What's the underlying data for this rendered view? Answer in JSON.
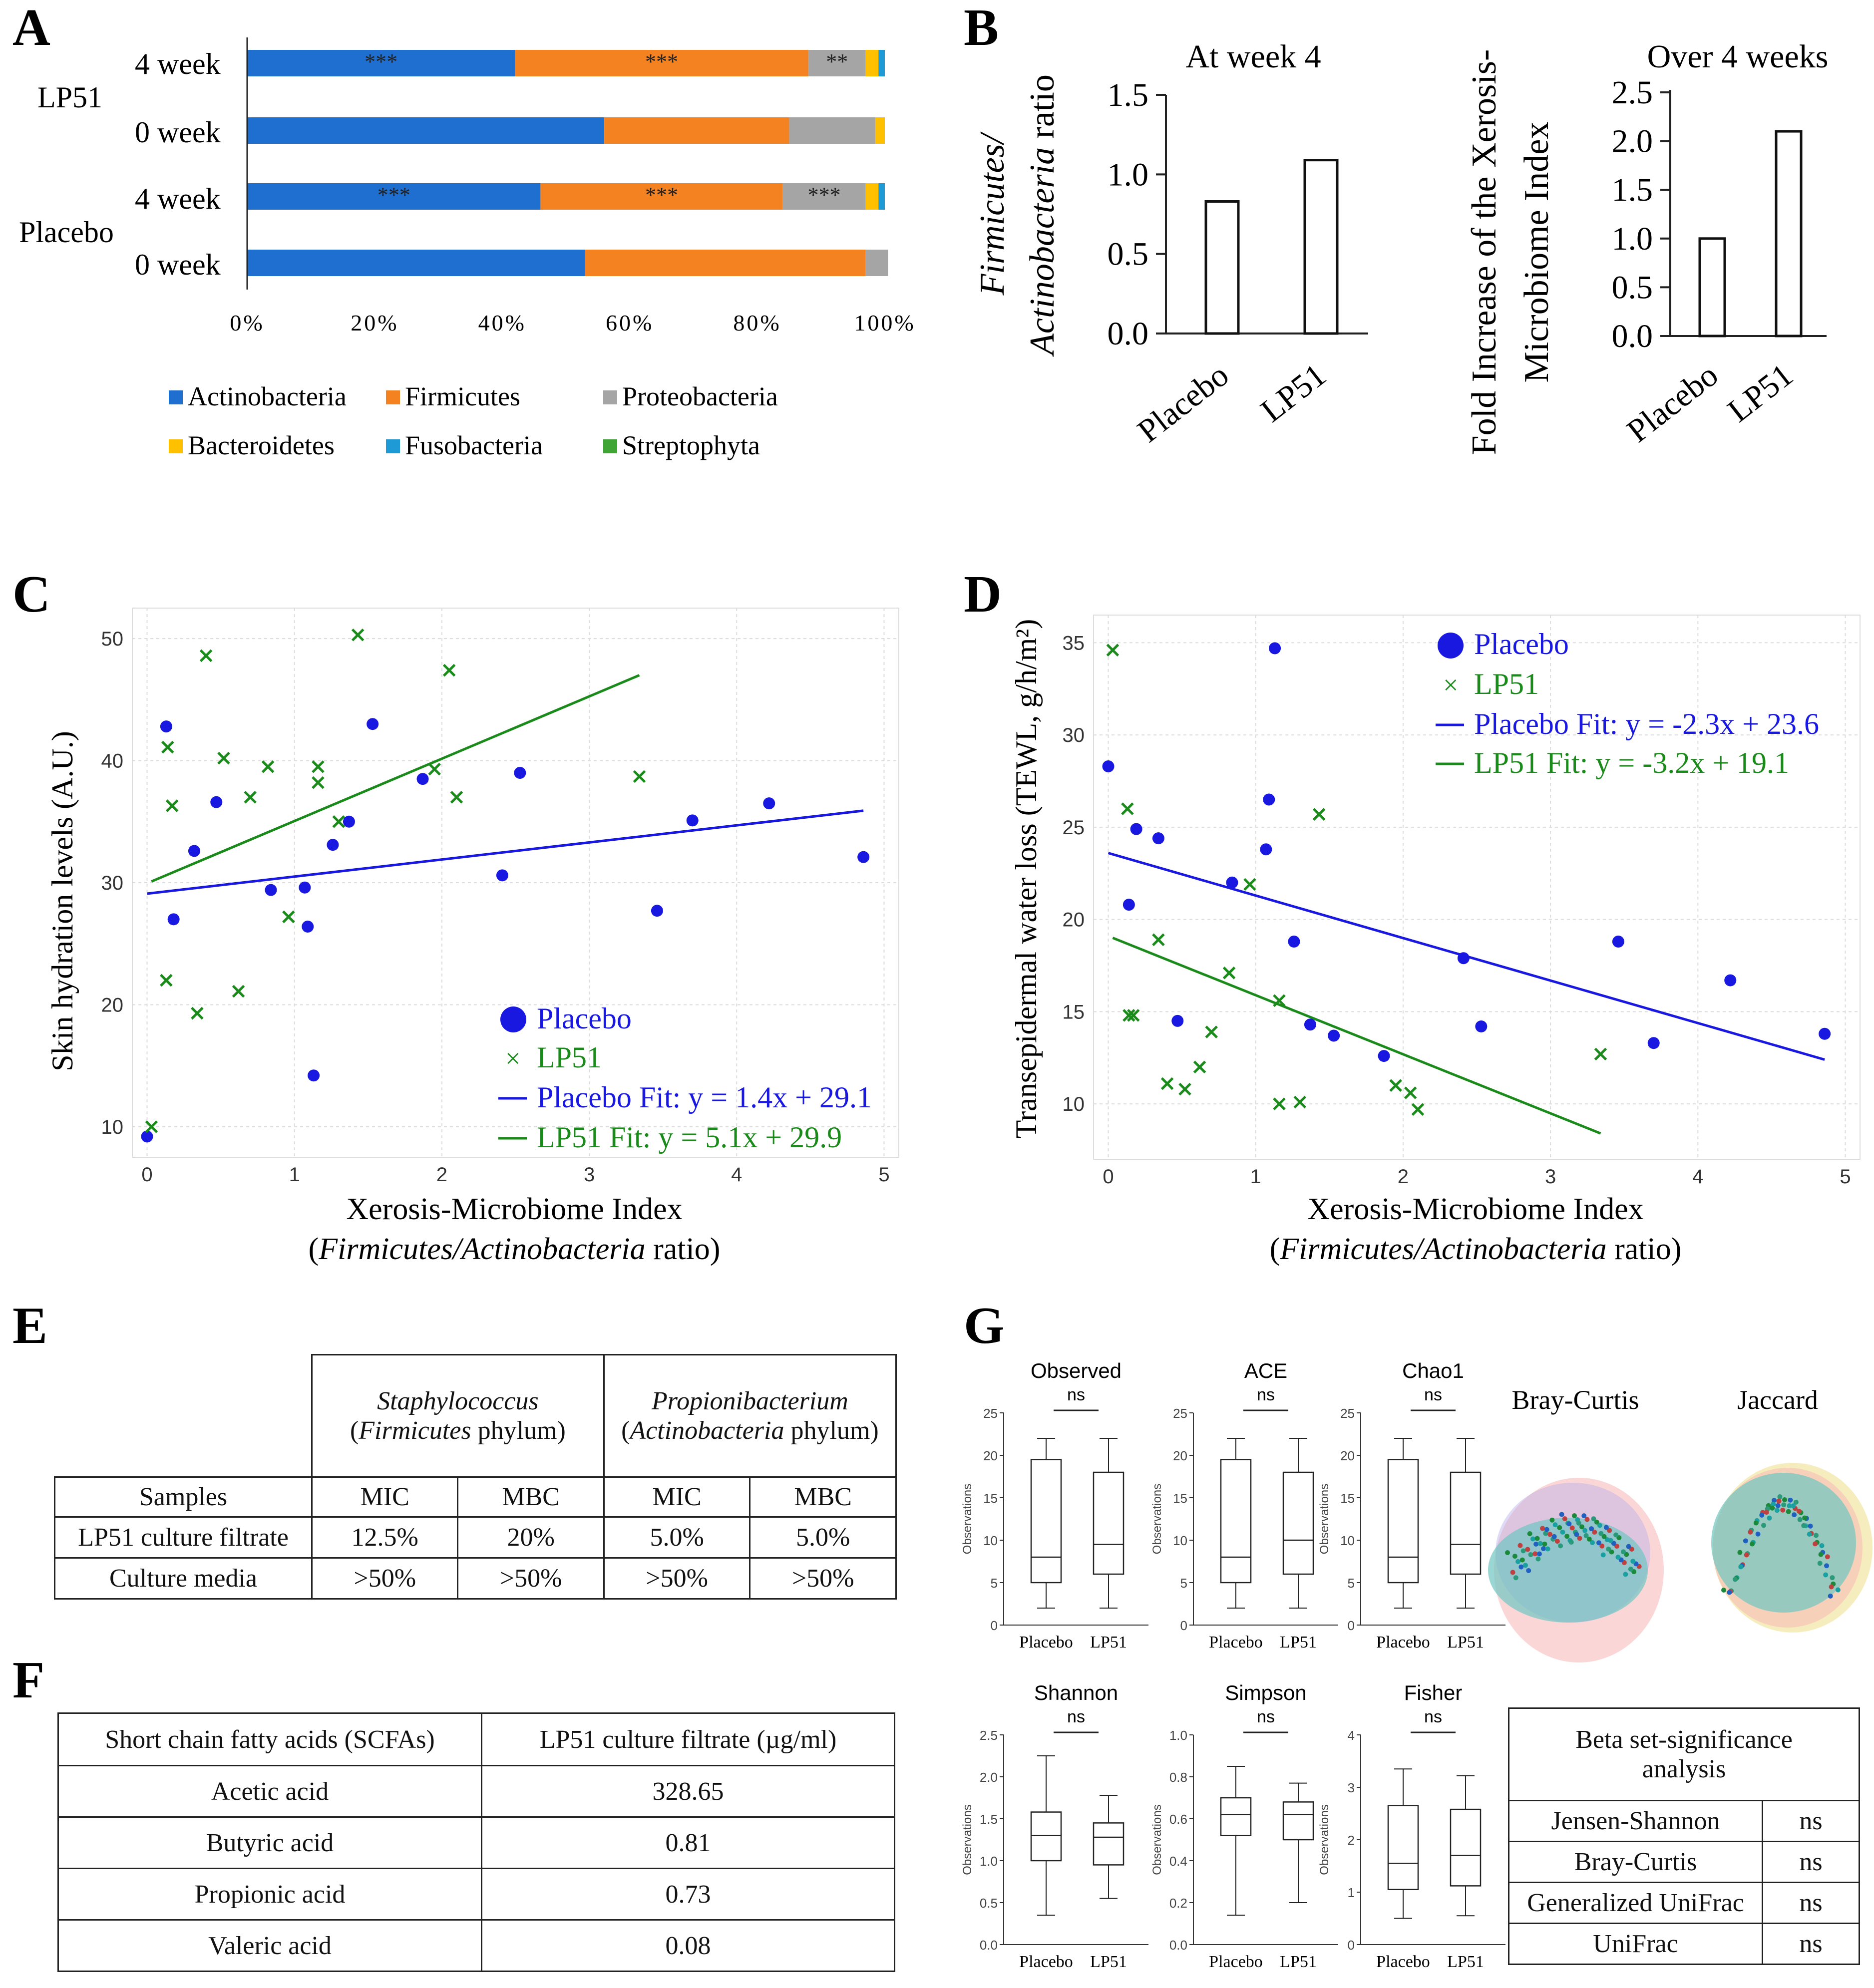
{
  "panels": {
    "A": "A",
    "B": "B",
    "C": "C",
    "D": "D",
    "E": "E",
    "F": "F",
    "G": "G"
  },
  "colors": {
    "actinobacteria": "#1f6fd1",
    "firmicutes": "#f58220",
    "proteobacteria": "#a5a5a5",
    "bacteroidetes": "#ffc000",
    "fusobacteria": "#1e9bd7",
    "streptophyta": "#3fa535",
    "placebo": "#1818e0",
    "lp51": "#1a8a1a"
  },
  "chart_data": [
    {
      "id": "A",
      "type": "bar",
      "orientation": "horizontal",
      "stacked": true,
      "groups": [
        "LP51",
        "Placebo"
      ],
      "categories": [
        "4 week",
        "0 week",
        "4 week",
        "0 week"
      ],
      "category_group": [
        "LP51",
        "LP51",
        "Placebo",
        "Placebo"
      ],
      "series": [
        {
          "name": "Actinobacteria",
          "values": [
            42,
            56,
            46,
            53
          ]
        },
        {
          "name": "Firmicutes",
          "values": [
            46,
            29,
            38,
            44
          ]
        },
        {
          "name": "Proteobacteria",
          "values": [
            9,
            13.5,
            13,
            3.5
          ]
        },
        {
          "name": "Bacteroidetes",
          "values": [
            2,
            1.5,
            2,
            0
          ]
        },
        {
          "name": "Fusobacteria",
          "values": [
            1,
            0,
            1,
            0
          ]
        },
        {
          "name": "Streptophyta",
          "values": [
            0,
            0,
            0,
            0
          ]
        }
      ],
      "significance": [
        {
          "row": 0,
          "series": "Actinobacteria",
          "label": "***"
        },
        {
          "row": 0,
          "series": "Firmicutes",
          "label": "***"
        },
        {
          "row": 0,
          "series": "Proteobacteria",
          "label": "**"
        },
        {
          "row": 2,
          "series": "Actinobacteria",
          "label": "***"
        },
        {
          "row": 2,
          "series": "Firmicutes",
          "label": "***"
        },
        {
          "row": 2,
          "series": "Proteobacteria",
          "label": "***"
        }
      ],
      "xticks": [
        "0%",
        "20%",
        "40%",
        "60%",
        "80%",
        "100%"
      ],
      "xlim": [
        0,
        100
      ]
    },
    {
      "id": "B1",
      "type": "bar",
      "title": "At week 4",
      "categories": [
        "Placebo",
        "LP51"
      ],
      "values": [
        0.83,
        1.09
      ],
      "ylabel_italic_1": "Firmicutes/",
      "ylabel_italic_2": "Actinobacteria",
      "ylabel_suffix": " ratio",
      "yticks": [
        "0.0",
        "0.5",
        "1.0",
        "1.5"
      ],
      "ylim": [
        0,
        1.5
      ]
    },
    {
      "id": "B2",
      "type": "bar",
      "title": "Over 4 weeks",
      "categories": [
        "Placebo",
        "LP51"
      ],
      "values": [
        1.0,
        2.1
      ],
      "ylabel_1": "Fold Increase of the Xerosis-",
      "ylabel_2": "Microbiome Index",
      "yticks": [
        "0.0",
        "0.5",
        "1.0",
        "1.5",
        "2.0",
        "2.5"
      ],
      "ylim": [
        0,
        2.5
      ]
    },
    {
      "id": "C",
      "type": "scatter",
      "ylabel": "Skin hydration levels (A.U.)",
      "xlabel_1": "Xerosis-Microbiome Index",
      "xlabel_2_open": "(",
      "xlabel_2_italic": "Firmicutes/Actinobacteria",
      "xlabel_2_close": " ratio)",
      "xlim": [
        -0.1,
        5.1
      ],
      "ylim": [
        7.5,
        52.5
      ],
      "xticks": [
        "0",
        "1",
        "2",
        "3",
        "4",
        "5"
      ],
      "yticks": [
        "10",
        "20",
        "30",
        "40",
        "50"
      ],
      "placebo": [
        [
          0,
          9.2
        ],
        [
          0.13,
          42.8
        ],
        [
          0.18,
          27
        ],
        [
          0.32,
          32.6
        ],
        [
          0.47,
          36.6
        ],
        [
          0.84,
          29.4
        ],
        [
          1.07,
          29.6
        ],
        [
          1.09,
          26.4
        ],
        [
          1.13,
          14.2
        ],
        [
          1.26,
          33.1
        ],
        [
          1.37,
          35
        ],
        [
          1.53,
          43
        ],
        [
          1.87,
          38.5
        ],
        [
          2.41,
          30.6
        ],
        [
          2.53,
          39
        ],
        [
          3.46,
          27.7
        ],
        [
          3.7,
          35.1
        ],
        [
          4.22,
          36.5
        ],
        [
          4.86,
          32.1
        ]
      ],
      "lp51": [
        [
          0.03,
          10
        ],
        [
          0.13,
          22
        ],
        [
          0.14,
          41.1
        ],
        [
          0.17,
          36.3
        ],
        [
          0.34,
          19.3
        ],
        [
          0.4,
          48.6
        ],
        [
          0.52,
          40.2
        ],
        [
          0.62,
          21.1
        ],
        [
          0.7,
          37
        ],
        [
          0.82,
          39.5
        ],
        [
          0.96,
          27.2
        ],
        [
          1.16,
          39.5
        ],
        [
          1.16,
          38.2
        ],
        [
          1.3,
          35
        ],
        [
          1.43,
          50.3
        ],
        [
          1.95,
          39.3
        ],
        [
          2.05,
          47.4
        ],
        [
          2.1,
          37
        ],
        [
          3.34,
          38.7
        ]
      ],
      "placebo_fit": {
        "x": [
          0,
          4.86
        ],
        "y": [
          29.1,
          35.9
        ]
      },
      "lp51_fit": {
        "x": [
          0.03,
          3.34
        ],
        "y": [
          30.1,
          47.0
        ]
      },
      "legend": [
        "Placebo",
        "LP51",
        "Placebo Fit: y = 1.4x + 29.1",
        "LP51 Fit: y = 5.1x + 29.9"
      ]
    },
    {
      "id": "D",
      "type": "scatter",
      "ylabel": "Transepidermal water loss (TEWL, g/h/m²)",
      "xlabel_1": "Xerosis-Microbiome Index",
      "xlabel_2_open": "(",
      "xlabel_2_italic": "Firmicutes/Actinobacteria",
      "xlabel_2_close": " ratio)",
      "xlim": [
        -0.1,
        5.1
      ],
      "ylim": [
        7,
        36.5
      ],
      "xticks": [
        "0",
        "1",
        "2",
        "3",
        "4",
        "5"
      ],
      "yticks": [
        "10",
        "15",
        "20",
        "25",
        "30",
        "35"
      ],
      "placebo": [
        [
          0,
          28.3
        ],
        [
          0.14,
          20.8
        ],
        [
          0.19,
          24.9
        ],
        [
          0.34,
          24.4
        ],
        [
          0.47,
          14.5
        ],
        [
          0.84,
          22
        ],
        [
          1.07,
          23.8
        ],
        [
          1.09,
          26.5
        ],
        [
          1.13,
          34.7
        ],
        [
          1.26,
          18.8
        ],
        [
          1.37,
          14.3
        ],
        [
          1.53,
          13.7
        ],
        [
          1.87,
          12.6
        ],
        [
          2.41,
          17.9
        ],
        [
          2.53,
          14.2
        ],
        [
          3.46,
          18.8
        ],
        [
          3.7,
          13.3
        ],
        [
          4.22,
          16.7
        ],
        [
          4.86,
          13.8
        ]
      ],
      "lp51": [
        [
          0.03,
          34.6
        ],
        [
          0.13,
          26
        ],
        [
          0.14,
          14.8
        ],
        [
          0.17,
          14.8
        ],
        [
          0.34,
          18.9
        ],
        [
          0.4,
          11.1
        ],
        [
          0.52,
          10.8
        ],
        [
          0.62,
          12
        ],
        [
          0.7,
          13.9
        ],
        [
          0.82,
          17.1
        ],
        [
          0.96,
          21.9
        ],
        [
          1.16,
          15.6
        ],
        [
          1.16,
          10
        ],
        [
          1.3,
          10.1
        ],
        [
          1.43,
          25.7
        ],
        [
          1.95,
          11
        ],
        [
          2.05,
          10.6
        ],
        [
          2.1,
          9.7
        ],
        [
          3.34,
          12.7
        ]
      ],
      "placebo_fit": {
        "x": [
          0,
          4.86
        ],
        "y": [
          23.6,
          12.4
        ]
      },
      "lp51_fit": {
        "x": [
          0.03,
          3.34
        ],
        "y": [
          19.0,
          8.4
        ]
      },
      "legend": [
        "Placebo",
        "LP51",
        "Placebo Fit: y = -2.3x + 23.6",
        "LP51 Fit: y = -3.2x + 19.1"
      ]
    },
    {
      "id": "G-alpha",
      "type": "box",
      "ylabel": "Observations",
      "groups": [
        "Placebo",
        "LP51"
      ],
      "plots": [
        {
          "title": "Observed",
          "sig": "ns",
          "yticks": [
            "0",
            "5",
            "10",
            "15",
            "20",
            "25"
          ],
          "ylim": [
            0,
            25
          ],
          "boxes": [
            {
              "min": 2,
              "q1": 5,
              "median": 8,
              "q3": 19.5,
              "max": 22
            },
            {
              "min": 2,
              "q1": 6,
              "median": 9.5,
              "q3": 18,
              "max": 22
            }
          ]
        },
        {
          "title": "ACE",
          "sig": "ns",
          "yticks": [
            "0",
            "5",
            "10",
            "15",
            "20",
            "25"
          ],
          "ylim": [
            0,
            25
          ],
          "boxes": [
            {
              "min": 2,
              "q1": 5,
              "median": 8,
              "q3": 19.5,
              "max": 22
            },
            {
              "min": 2,
              "q1": 6,
              "median": 10,
              "q3": 18,
              "max": 22
            }
          ]
        },
        {
          "title": "Chao1",
          "sig": "ns",
          "yticks": [
            "0",
            "5",
            "10",
            "15",
            "20",
            "25"
          ],
          "ylim": [
            0,
            25
          ],
          "boxes": [
            {
              "min": 2,
              "q1": 5,
              "median": 8,
              "q3": 19.5,
              "max": 22
            },
            {
              "min": 2,
              "q1": 6,
              "median": 9.5,
              "q3": 18,
              "max": 22
            }
          ]
        },
        {
          "title": "Shannon",
          "sig": "ns",
          "yticks": [
            "0.0",
            "0.5",
            "1.0",
            "1.5",
            "2.0",
            "2.5"
          ],
          "ylim": [
            0,
            2.5
          ],
          "boxes": [
            {
              "min": 0.35,
              "q1": 1.0,
              "median": 1.3,
              "q3": 1.58,
              "max": 2.25
            },
            {
              "min": 0.55,
              "q1": 0.95,
              "median": 1.28,
              "q3": 1.45,
              "max": 1.78
            }
          ]
        },
        {
          "title": "Simpson",
          "sig": "ns",
          "yticks": [
            "0.0",
            "0.2",
            "0.4",
            "0.6",
            "0.8",
            "1.0"
          ],
          "ylim": [
            0,
            1
          ],
          "boxes": [
            {
              "min": 0.14,
              "q1": 0.52,
              "median": 0.62,
              "q3": 0.7,
              "max": 0.85
            },
            {
              "min": 0.2,
              "q1": 0.5,
              "median": 0.62,
              "q3": 0.68,
              "max": 0.77
            }
          ]
        },
        {
          "title": "Fisher",
          "sig": "ns",
          "yticks": [
            "0",
            "1",
            "2",
            "3",
            "4"
          ],
          "ylim": [
            0,
            4
          ],
          "boxes": [
            {
              "min": 0.5,
              "q1": 1.05,
              "median": 1.55,
              "q3": 2.65,
              "max": 3.35
            },
            {
              "min": 0.55,
              "q1": 1.12,
              "median": 1.7,
              "q3": 2.58,
              "max": 3.22
            }
          ]
        }
      ]
    }
  ],
  "pcoa": {
    "bray": "Bray-Curtis",
    "jaccard": "Jaccard"
  },
  "tableE": {
    "staph_name": "Staphylococcus",
    "staph_phylum_open": "(",
    "staph_phylum": "Firmicutes",
    "staph_phylum_close": " phylum)",
    "prop_name": "Propionibacterium",
    "prop_phylum_open": "(",
    "prop_phylum": "Actinobacteria",
    "prop_phylum_close": " phylum)",
    "col_samples": "Samples",
    "mic1": "MIC",
    "mbc1": "MBC",
    "mic2": "MIC",
    "mbc2": "MBC",
    "rows": [
      {
        "label": "LP51 culture filtrate",
        "v": [
          "12.5%",
          "20%",
          "5.0%",
          "5.0%"
        ]
      },
      {
        "label": "Culture media",
        "v": [
          ">50%",
          ">50%",
          ">50%",
          ">50%"
        ]
      }
    ]
  },
  "tableF": {
    "h1": "Short chain fatty acids (SCFAs)",
    "h2": "LP51 culture filtrate (µg/ml)",
    "rows": [
      {
        "acid": "Acetic acid",
        "val": "328.65"
      },
      {
        "acid": "Butyric acid",
        "val": "0.81"
      },
      {
        "acid": "Propionic acid",
        "val": "0.73"
      },
      {
        "acid": "Valeric acid",
        "val": "0.08"
      }
    ]
  },
  "tableBeta": {
    "title_1": "Beta set-significance",
    "title_2": "analysis",
    "rows": [
      {
        "test": "Jensen-Shannon",
        "sig": "ns"
      },
      {
        "test": "Bray-Curtis",
        "sig": "ns"
      },
      {
        "test": "Generalized UniFrac",
        "sig": "ns"
      },
      {
        "test": "UniFrac",
        "sig": "ns"
      }
    ]
  }
}
